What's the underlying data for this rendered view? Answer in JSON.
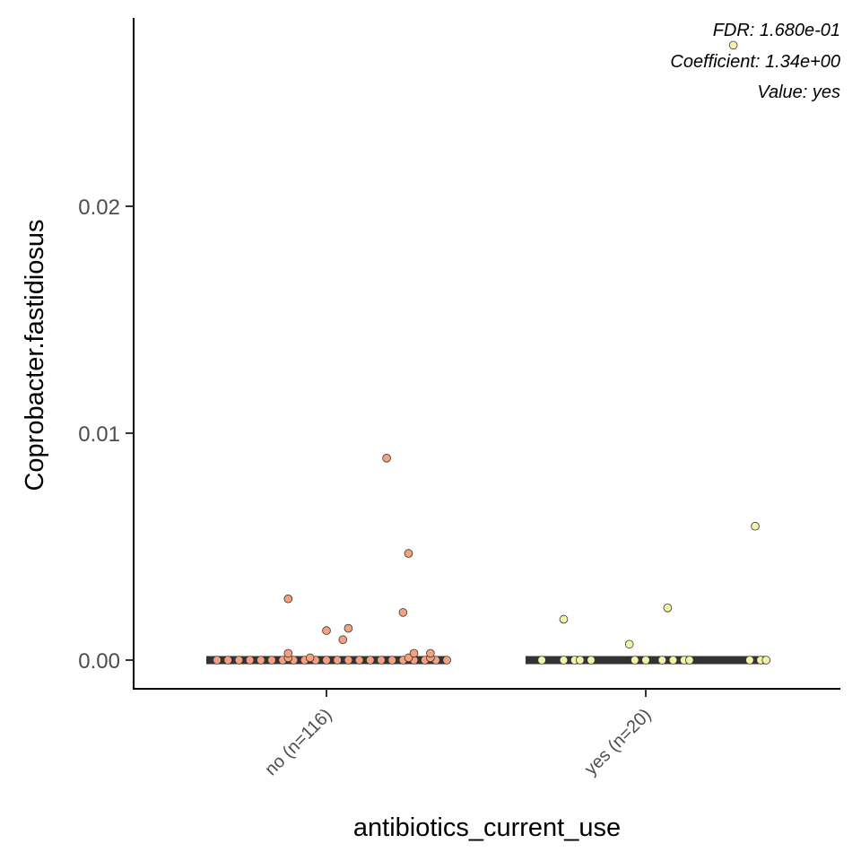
{
  "chart_data": {
    "type": "scatter",
    "xlabel": "antibiotics_current_use",
    "ylabel": "Coprobacter.fastidiosus",
    "ylim": [
      -0.0013,
      0.0283
    ],
    "yticks": [
      {
        "value": 0.0,
        "label": "0.00"
      },
      {
        "value": 0.01,
        "label": "0.01"
      },
      {
        "value": 0.02,
        "label": "0.02"
      }
    ],
    "categories": [
      "no (n=116)",
      "yes (n=20)"
    ],
    "annotations": [
      "FDR: 1.680e-01",
      "Coefficient: 1.34e+00",
      "Value: yes"
    ],
    "colors": {
      "no": "#f4a17f",
      "yes": "#f4f4a8",
      "median_bar": "#333333",
      "point_outline": "#333333"
    },
    "medians": [
      0.0,
      0.0
    ],
    "series": [
      {
        "category": "no (n=116)",
        "color": "#f4a17f",
        "points": [
          {
            "x": -0.2,
            "y": 0.0
          },
          {
            "x": -0.18,
            "y": 0.0
          },
          {
            "x": -0.16,
            "y": 0.0
          },
          {
            "x": -0.14,
            "y": 0.0
          },
          {
            "x": -0.12,
            "y": 0.0
          },
          {
            "x": -0.1,
            "y": 0.0
          },
          {
            "x": -0.08,
            "y": 0.0
          },
          {
            "x": -0.06,
            "y": 0.0
          },
          {
            "x": -0.04,
            "y": 0.0
          },
          {
            "x": -0.02,
            "y": 0.0
          },
          {
            "x": 0.0,
            "y": 0.0
          },
          {
            "x": 0.02,
            "y": 0.0
          },
          {
            "x": 0.04,
            "y": 0.0
          },
          {
            "x": 0.06,
            "y": 0.0
          },
          {
            "x": 0.08,
            "y": 0.0
          },
          {
            "x": 0.1,
            "y": 0.0
          },
          {
            "x": 0.12,
            "y": 0.0
          },
          {
            "x": 0.14,
            "y": 0.0
          },
          {
            "x": 0.16,
            "y": 0.0
          },
          {
            "x": 0.18,
            "y": 0.0
          },
          {
            "x": 0.2,
            "y": 0.0
          },
          {
            "x": 0.22,
            "y": 0.0
          },
          {
            "x": -0.07,
            "y": 0.0001
          },
          {
            "x": -0.03,
            "y": 0.0001
          },
          {
            "x": 0.15,
            "y": 0.0001
          },
          {
            "x": 0.19,
            "y": 0.0001
          },
          {
            "x": -0.07,
            "y": 0.0003
          },
          {
            "x": 0.16,
            "y": 0.0003
          },
          {
            "x": 0.19,
            "y": 0.0003
          },
          {
            "x": 0.03,
            "y": 0.0009
          },
          {
            "x": 0.0,
            "y": 0.0013
          },
          {
            "x": 0.04,
            "y": 0.0014
          },
          {
            "x": 0.14,
            "y": 0.0021
          },
          {
            "x": -0.07,
            "y": 0.0027
          },
          {
            "x": 0.15,
            "y": 0.0047
          },
          {
            "x": 0.11,
            "y": 0.0089
          }
        ]
      },
      {
        "category": "yes (n=20)",
        "color": "#f4f4a8",
        "points": [
          {
            "x": -0.19,
            "y": 0.0
          },
          {
            "x": -0.15,
            "y": 0.0
          },
          {
            "x": -0.13,
            "y": 0.0
          },
          {
            "x": -0.12,
            "y": 0.0
          },
          {
            "x": -0.1,
            "y": 0.0
          },
          {
            "x": -0.02,
            "y": 0.0
          },
          {
            "x": 0.0,
            "y": 0.0
          },
          {
            "x": 0.03,
            "y": 0.0
          },
          {
            "x": 0.05,
            "y": 0.0
          },
          {
            "x": 0.07,
            "y": 0.0
          },
          {
            "x": 0.08,
            "y": 0.0
          },
          {
            "x": 0.19,
            "y": 0.0
          },
          {
            "x": 0.21,
            "y": 0.0
          },
          {
            "x": 0.22,
            "y": 0.0
          },
          {
            "x": -0.15,
            "y": 0.0018
          },
          {
            "x": -0.03,
            "y": 0.0007
          },
          {
            "x": 0.04,
            "y": 0.0023
          },
          {
            "x": 0.2,
            "y": 0.0059
          },
          {
            "x": 0.16,
            "y": 0.0271
          }
        ]
      }
    ]
  }
}
